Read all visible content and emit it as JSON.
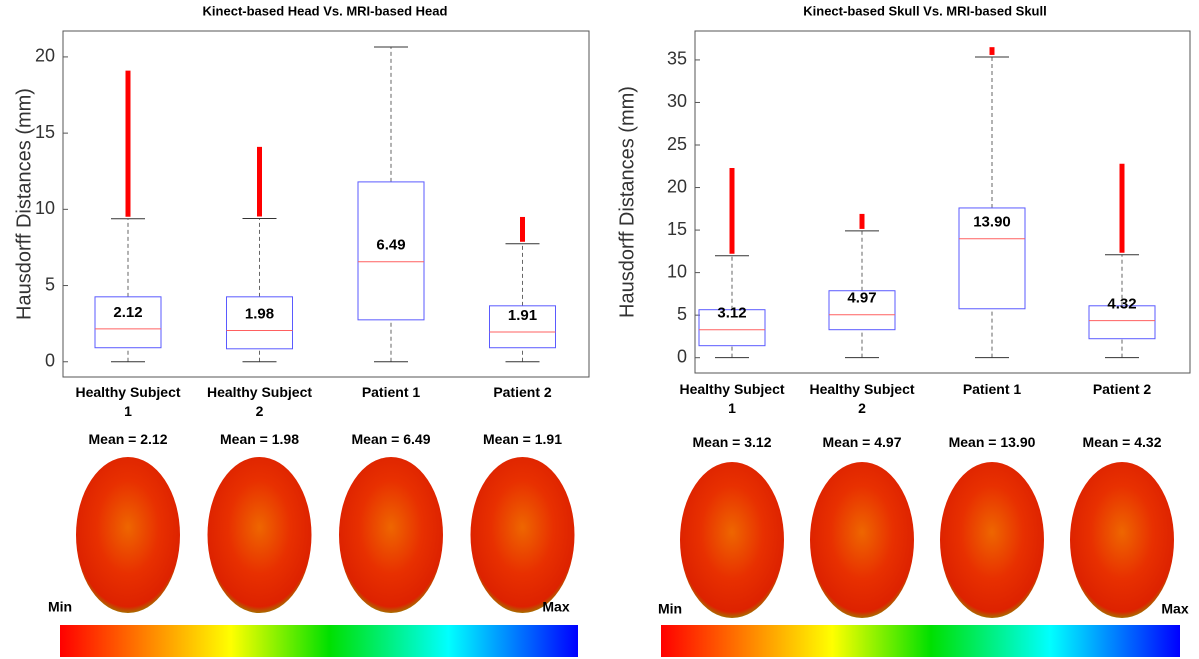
{
  "chart_data": [
    {
      "type": "box",
      "title": "Kinect-based Head Vs. MRI-based Head",
      "ylabel": "Hausdorff Distances (mm)",
      "categories": [
        "Healthy Subject 1",
        "Healthy Subject 2",
        "Patient 1",
        "Patient 2"
      ],
      "ylim": [
        -1,
        21.7
      ],
      "yticks": [
        0,
        5,
        10,
        15,
        20
      ],
      "box_color": "#5a5aff",
      "median_color": "#ff6060",
      "outlier_color": "#ff0000",
      "boxes": {
        "whisker_low": [
          0,
          0,
          0,
          0
        ],
        "q1": [
          0.92,
          0.85,
          2.75,
          0.92
        ],
        "median": [
          2.16,
          2.05,
          6.56,
          1.95
        ],
        "q3": [
          4.26,
          4.26,
          11.8,
          3.67
        ],
        "whisker_high": [
          9.38,
          9.4,
          20.65,
          7.74
        ],
        "outlier_max": [
          19.1,
          14.1,
          null,
          9.5
        ]
      },
      "means": {
        "values": [
          2.12,
          1.98,
          6.49,
          1.91
        ]
      },
      "annotations": [
        "Mean = 2.12",
        "Mean = 1.98",
        "Mean = 6.49",
        "Mean = 1.91"
      ],
      "colorbar": {
        "min_label": "Min",
        "max_label": "Max"
      }
    },
    {
      "type": "box",
      "title": "Kinect-based Skull Vs. MRI-based Skull",
      "ylabel": "Hausdorff Distances (mm)",
      "categories": [
        "Healthy Subject 1",
        "Healthy Subject 2",
        "Patient 1",
        "Patient 2"
      ],
      "ylim": [
        -1.8,
        38.4
      ],
      "yticks": [
        0,
        5,
        10,
        15,
        20,
        25,
        30,
        35
      ],
      "box_color": "#5a5aff",
      "median_color": "#ff6060",
      "outlier_color": "#ff0000",
      "boxes": {
        "whisker_low": [
          0,
          0,
          0,
          0
        ],
        "q1": [
          1.41,
          3.29,
          5.75,
          2.23
        ],
        "median": [
          3.29,
          5.05,
          13.98,
          4.35
        ],
        "q3": [
          5.64,
          7.87,
          17.6,
          6.1
        ],
        "whisker_high": [
          11.98,
          14.9,
          35.35,
          12.1
        ],
        "outlier_max": [
          22.3,
          16.9,
          36.5,
          22.8
        ]
      },
      "means": {
        "values": [
          3.12,
          4.97,
          13.9,
          4.32
        ],
        "value_labels": [
          "3.12",
          "4.97",
          "13.90",
          "4.32"
        ]
      },
      "annotations": [
        "Mean = 3.12",
        "Mean = 4.97",
        "Mean = 13.90",
        "Mean = 4.32"
      ],
      "colorbar": {
        "min_label": "Min",
        "max_label": "Max"
      }
    }
  ]
}
